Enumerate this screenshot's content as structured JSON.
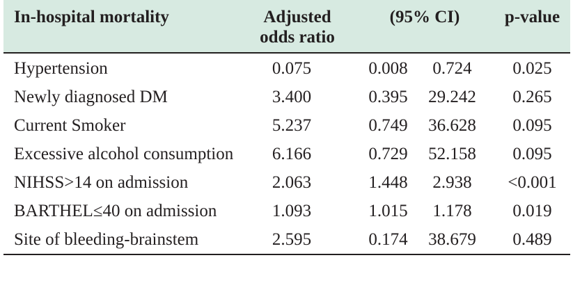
{
  "table": {
    "headers": {
      "label": "In-hospital mortality",
      "odds_ratio_line1": "Adjusted",
      "odds_ratio_line2": "odds ratio",
      "ci": "(95% CI)",
      "p_value": "p-value"
    },
    "rows": [
      {
        "label": "Hypertension",
        "or": "0.075",
        "ci_low": "0.008",
        "ci_high": "0.724",
        "p": "0.025"
      },
      {
        "label": "Newly diagnosed DM",
        "or": "3.400",
        "ci_low": "0.395",
        "ci_high": "29.242",
        "p": "0.265"
      },
      {
        "label": "Current Smoker",
        "or": "5.237",
        "ci_low": "0.749",
        "ci_high": "36.628",
        "p": "0.095"
      },
      {
        "label": "Excessive alcohol consumption",
        "or": "6.166",
        "ci_low": "0.729",
        "ci_high": "52.158",
        "p": "0.095"
      },
      {
        "label": "NIHSS>14 on admission",
        "or": "2.063",
        "ci_low": "1.448",
        "ci_high": "2.938",
        "p": "<0.001"
      },
      {
        "label": "BARTHEL≤40 on admission",
        "or": "1.093",
        "ci_low": "1.015",
        "ci_high": "1.178",
        "p": "0.019"
      },
      {
        "label": "Site of bleeding-brainstem",
        "or": "2.595",
        "ci_low": "0.174",
        "ci_high": "38.679",
        "p": "0.489"
      }
    ]
  }
}
